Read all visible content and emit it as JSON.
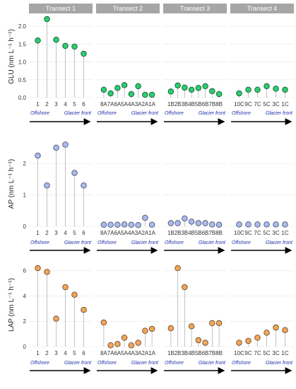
{
  "chart_data": {
    "type": "scatter",
    "style": "lollipop",
    "facets": [
      "Transect 1",
      "Transect 2",
      "Transect 3",
      "Transect 4"
    ],
    "categories": [
      [
        "1",
        "2",
        "3",
        "4",
        "5",
        "6"
      ],
      [
        "8A",
        "7A",
        "6A",
        "5A",
        "4A",
        "3A",
        "2A",
        "1A"
      ],
      [
        "1B",
        "2B",
        "3B",
        "4B",
        "5B",
        "6B",
        "7B",
        "8B"
      ],
      [
        "10C",
        "9C",
        "7C",
        "5C",
        "3C",
        "1C"
      ]
    ],
    "annotations": {
      "left": "Offshore",
      "right": "Glacier front"
    },
    "panels": [
      {
        "ylabel": "GLU (nm L⁻¹ h⁻¹)",
        "ylim": [
          0,
          2.3
        ],
        "yticks": [
          0,
          0.5,
          1.0,
          1.5,
          2.0
        ],
        "ytick_labels": [
          "0.0",
          "0.5",
          "1.0",
          "1.5",
          "2.0"
        ],
        "color": "#2ecc71",
        "values": [
          [
            1.6,
            2.2,
            1.62,
            1.45,
            1.43,
            1.23
          ],
          [
            0.22,
            0.12,
            0.27,
            0.35,
            0.1,
            0.32,
            0.08,
            0.08
          ],
          [
            0.17,
            0.34,
            0.28,
            0.22,
            0.27,
            0.32,
            0.18,
            0.1
          ],
          [
            0.12,
            0.22,
            0.22,
            0.32,
            0.25,
            0.22
          ]
        ]
      },
      {
        "ylabel": "AP (nm L⁻¹ h⁻¹)",
        "ylim": [
          0,
          2.7
        ],
        "yticks": [
          0,
          1,
          2
        ],
        "ytick_labels": [
          "0",
          "1",
          "2"
        ],
        "color": "#aabbf0",
        "values": [
          [
            2.25,
            1.3,
            2.5,
            2.6,
            1.7,
            1.3
          ],
          [
            0.05,
            0.05,
            0.05,
            0.06,
            0.05,
            0.04,
            0.27,
            0.05
          ],
          [
            0.1,
            0.1,
            0.25,
            0.15,
            0.1,
            0.1,
            0.06,
            0.05
          ],
          [
            0.06,
            0.06,
            0.06,
            0.06,
            0.06,
            0.06
          ]
        ]
      },
      {
        "ylabel": "LAP (nm L⁻¹ h⁻¹)",
        "ylim": [
          0,
          6.6
        ],
        "yticks": [
          0,
          2,
          4,
          6
        ],
        "ytick_labels": [
          "0",
          "2",
          "4",
          "6"
        ],
        "color": "#f2a65a",
        "values": [
          [
            6.2,
            5.9,
            2.2,
            4.7,
            4.1,
            2.9
          ],
          [
            1.9,
            0.1,
            0.2,
            0.7,
            0.1,
            0.3,
            1.25,
            1.4
          ],
          [
            1.45,
            6.2,
            4.7,
            1.6,
            0.5,
            0.3,
            1.85,
            1.85
          ],
          [
            0.3,
            0.45,
            0.7,
            1.1,
            1.5,
            1.3
          ]
        ]
      }
    ]
  }
}
